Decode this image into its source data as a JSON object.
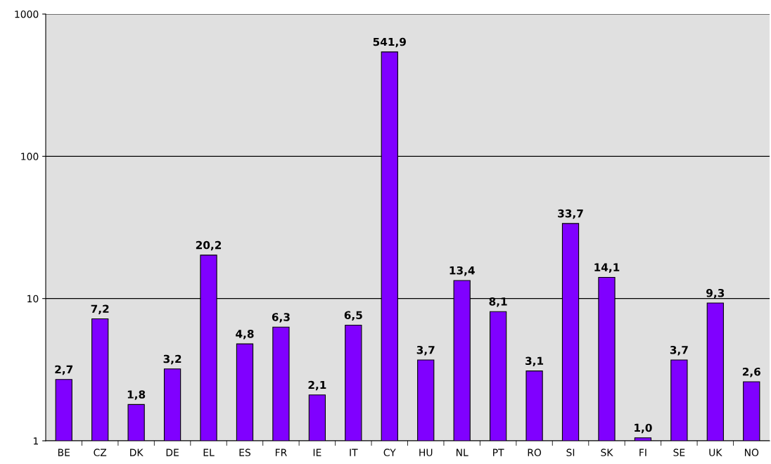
{
  "chart_data": {
    "type": "bar",
    "categories": [
      "BE",
      "CZ",
      "DK",
      "DE",
      "EL",
      "ES",
      "FR",
      "IE",
      "IT",
      "CY",
      "HU",
      "NL",
      "PT",
      "RO",
      "SI",
      "SK",
      "FI",
      "SE",
      "UK",
      "NO"
    ],
    "values": [
      2.7,
      7.2,
      1.8,
      3.2,
      20.2,
      4.8,
      6.3,
      2.1,
      6.5,
      541.9,
      3.7,
      13.4,
      8.1,
      3.1,
      33.7,
      14.1,
      1.05,
      3.7,
      9.3,
      2.6
    ],
    "value_labels": [
      "2,7",
      "7,2",
      "1,8",
      "3,2",
      "20,2",
      "4,8",
      "6,3",
      "2,1",
      "6,5",
      "541,9",
      "3,7",
      "13,4",
      "8,1",
      "3,1",
      "33,7",
      "14,1",
      "1,0",
      "3,7",
      "9,3",
      "2,6"
    ],
    "color": "#8000ff",
    "log": true,
    "ylim": [
      1,
      1000
    ],
    "yticks": [
      1,
      10,
      100,
      1000
    ],
    "grid": "y"
  }
}
